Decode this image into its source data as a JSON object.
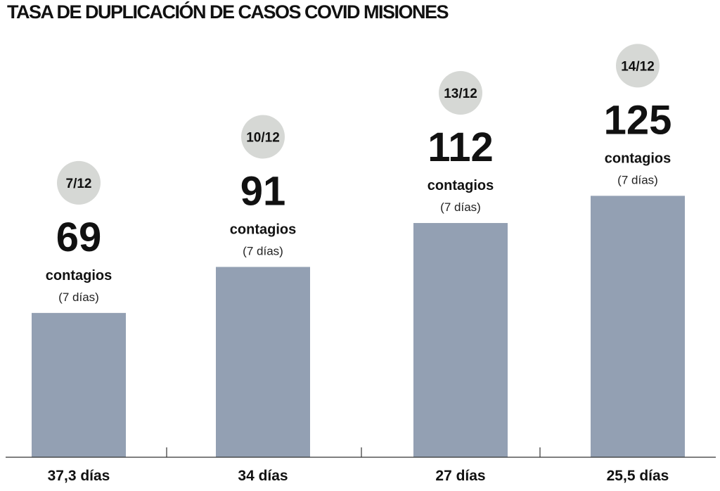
{
  "chart_data": {
    "type": "bar",
    "title": "TASA DE DUPLICACIÓN DE CASOS COVID MISIONES",
    "categories": [
      "37,3 días",
      "34 días",
      "27 días",
      "25,5 días"
    ],
    "dates": [
      "7/12",
      "10/12",
      "13/12",
      "14/12"
    ],
    "values": [
      69,
      91,
      112,
      125
    ],
    "value_unit_label": "contagios",
    "value_period_label": "(7 días)",
    "ylim": [
      0,
      148
    ],
    "grid": false,
    "legend": "none",
    "colors": {
      "bar": "#93a0b3",
      "date_badge": "#d6d8d5",
      "text": "#111111",
      "axis": "#333333"
    }
  }
}
